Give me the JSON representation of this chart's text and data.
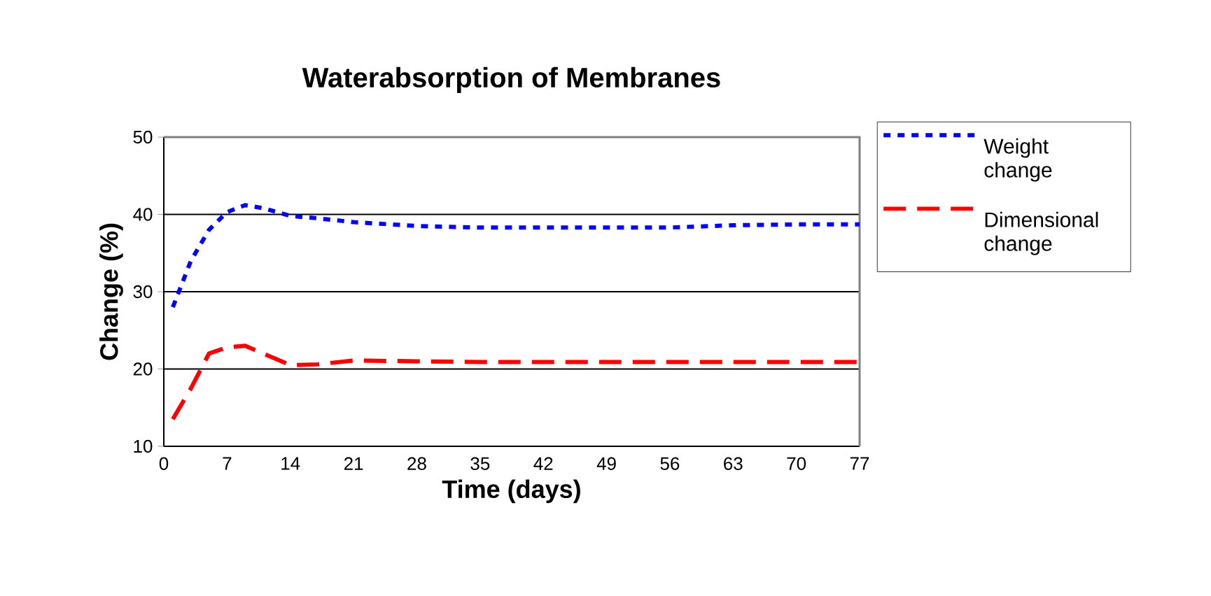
{
  "chart_data": {
    "type": "line",
    "title": "Waterabsorption of Membranes",
    "xlabel": "Time (days)",
    "ylabel": "Change (%)",
    "xlim": [
      0,
      77
    ],
    "xticks": [
      0,
      7,
      14,
      21,
      28,
      35,
      42,
      49,
      56,
      63,
      70,
      77
    ],
    "ylim": [
      10,
      50
    ],
    "yticks": [
      10,
      20,
      30,
      40,
      50
    ],
    "grid": "y",
    "legend": "right",
    "marker": "none",
    "x": [
      1,
      3,
      5,
      7,
      9,
      11,
      14,
      17,
      21,
      28,
      35,
      42,
      49,
      56,
      63,
      70,
      77
    ],
    "series": [
      {
        "name": "Weight change",
        "color": "#0000ff",
        "line_style": "dotted",
        "values": [
          28,
          34,
          38,
          40.3,
          41.2,
          40.8,
          39.8,
          39.5,
          39,
          38.5,
          38.3,
          38.3,
          38.3,
          38.3,
          38.6,
          38.7,
          38.7
        ]
      },
      {
        "name": "Dimensional change",
        "color": "#ff0000",
        "line_style": "dashed",
        "values": [
          13.5,
          17.5,
          22,
          22.8,
          23,
          22,
          20.5,
          20.6,
          21.1,
          21,
          20.9,
          20.9,
          20.9,
          20.9,
          20.9,
          20.9,
          20.9
        ]
      }
    ]
  }
}
